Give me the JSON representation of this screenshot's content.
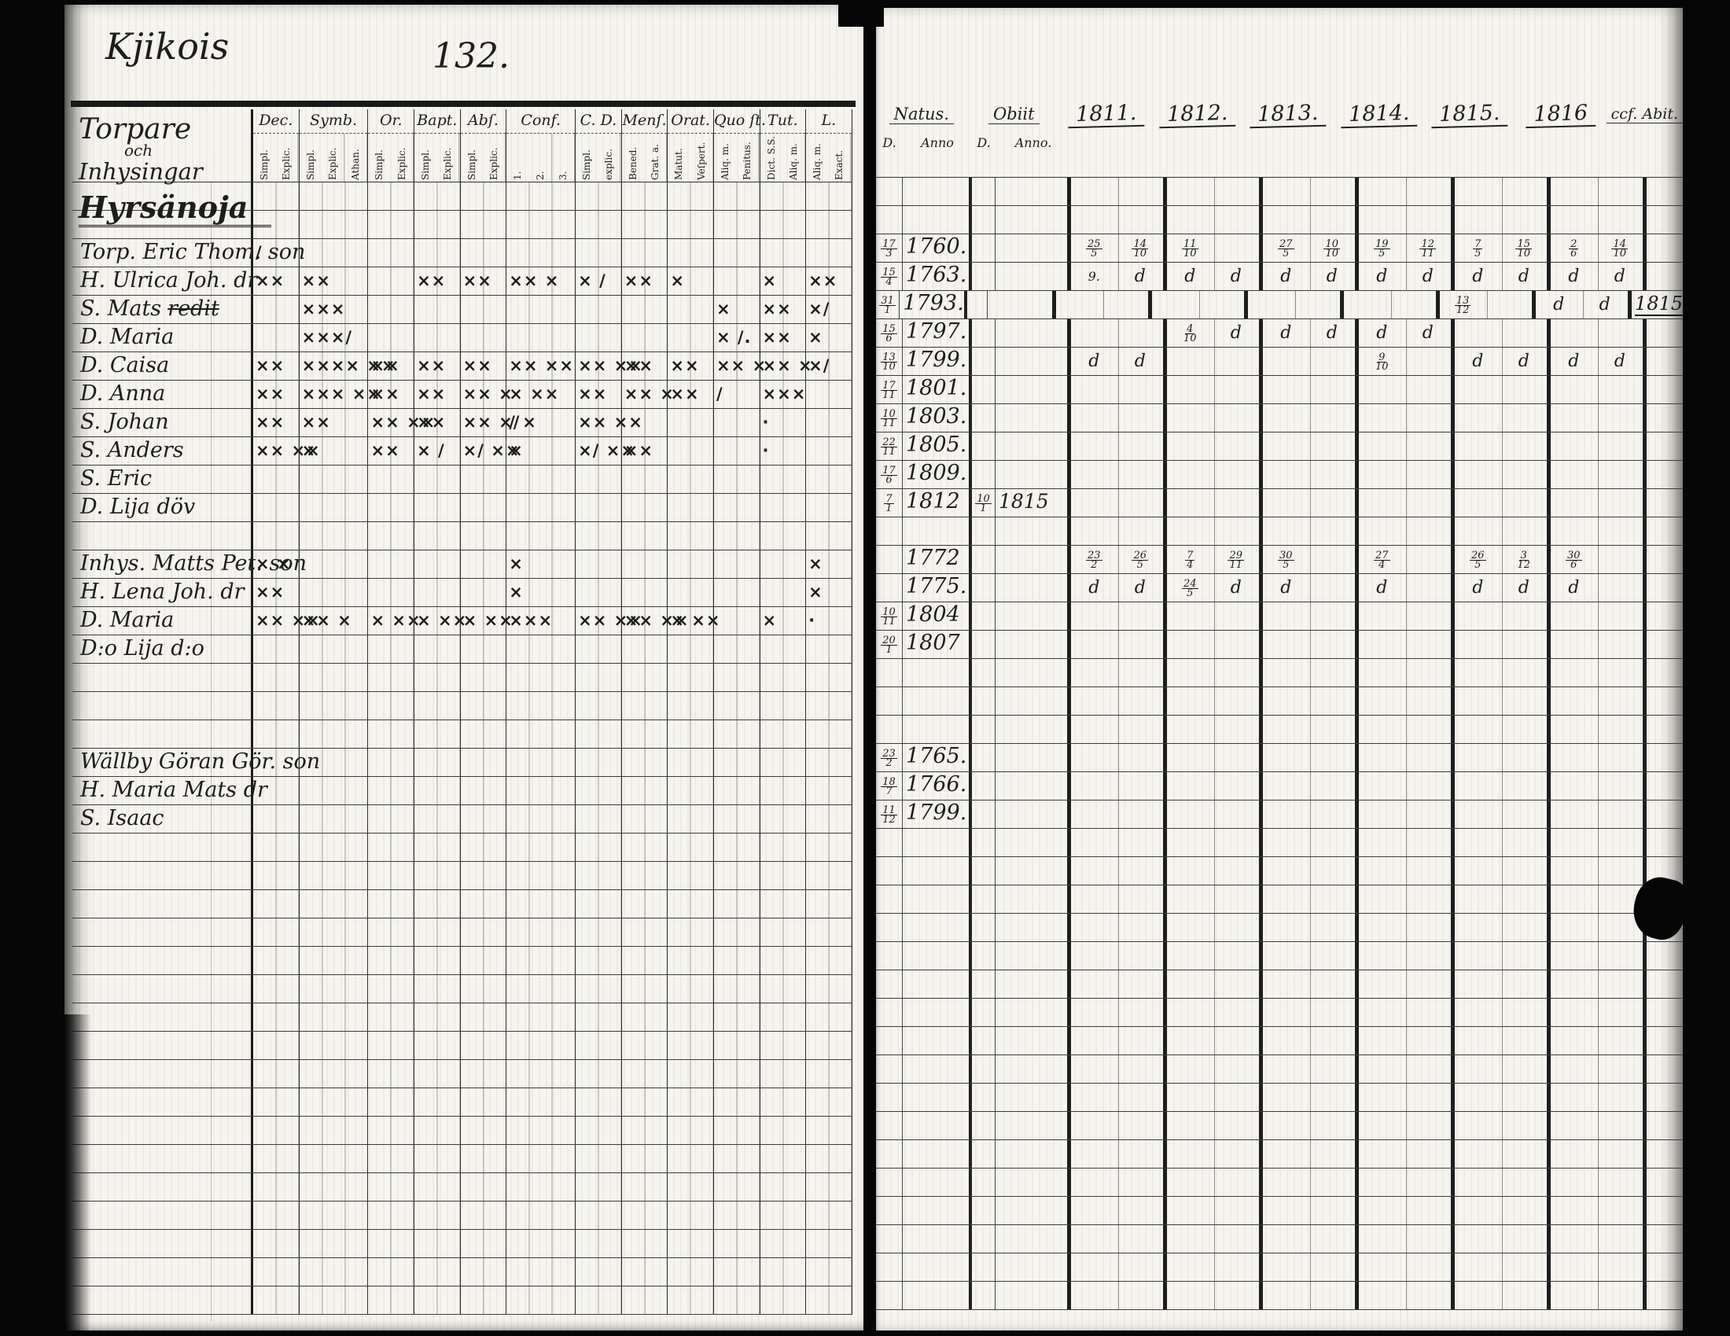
{
  "header": {
    "title": "Kjikois",
    "page_number": "132."
  },
  "left": {
    "group_heading": {
      "line1": "Torpare",
      "line2": "och",
      "line3": "Inhysingar",
      "village": "Hyrsänoja"
    },
    "columns": [
      {
        "label": "Dec.",
        "subs": [
          "Simpl.",
          "Explic."
        ]
      },
      {
        "label": "Symb.",
        "subs": [
          "Simpl.",
          "Explic.",
          "Athan."
        ]
      },
      {
        "label": "Or.",
        "subs": [
          "Simpl.",
          "Explic."
        ]
      },
      {
        "label": "Bapt.",
        "subs": [
          "Simpl.",
          "Explic."
        ]
      },
      {
        "label": "Abſ.",
        "subs": [
          "Simpl.",
          "Explic."
        ]
      },
      {
        "label": "Conf.",
        "subs": [
          "1.",
          "2.",
          "3."
        ]
      },
      {
        "label": "C. D.",
        "subs": [
          "Simpl.",
          "explic."
        ]
      },
      {
        "label": "Menſ.",
        "subs": [
          "Bened.",
          "Grat. a."
        ]
      },
      {
        "label": "Orat.",
        "subs": [
          "Matut.",
          "Veſpert."
        ]
      },
      {
        "label": "Quo ſt.",
        "subs": [
          "Aliq. m.",
          "Penitus."
        ]
      },
      {
        "label": "Tut.",
        "subs": [
          "Dict. S.S.",
          "Aliq. m."
        ]
      },
      {
        "label": "L.",
        "subs": [
          "Aliq. m.",
          "Exact."
        ]
      }
    ]
  },
  "right": {
    "natus": {
      "label": "Natus.",
      "subs": [
        "D.",
        "Anno"
      ]
    },
    "obiit": {
      "label": "Obiit",
      "subs": [
        "D.",
        "Anno."
      ]
    },
    "years": [
      "1811.",
      "1812.",
      "1813.",
      "1814.",
      "1815.",
      "1816"
    ],
    "abit_label": "ccf. Abit."
  },
  "rows": [
    {},
    {},
    {
      "name": "Torp. Eric Thom. son",
      "marks": [
        "/",
        "",
        "",
        "",
        "",
        "",
        "",
        "",
        "",
        "",
        "",
        ""
      ],
      "natus_d": "17/3",
      "natus_anno": "1760.",
      "years": [
        [
          "25/5",
          "14/10"
        ],
        [
          "11/10",
          ""
        ],
        [
          "27/5",
          "10/10"
        ],
        [
          "19/5",
          "12/11"
        ],
        [
          "7/5",
          "15/10"
        ],
        [
          "2/6",
          "14/10"
        ]
      ]
    },
    {
      "name": "H. Ulrica Joh. dr",
      "marks": [
        "××",
        "××",
        "",
        "××",
        "××",
        "×× ×",
        "× /",
        "××",
        "×",
        "",
        "×",
        "××"
      ],
      "natus_d": "15/4",
      "natus_anno": "1763.",
      "years": [
        [
          "9.",
          "d"
        ],
        [
          "d",
          "d"
        ],
        [
          "d",
          "d"
        ],
        [
          "d",
          "d"
        ],
        [
          "d",
          "d"
        ],
        [
          "d",
          "d"
        ]
      ]
    },
    {
      "name": "S. Mats",
      "strike": "redit",
      "marks": [
        "",
        "×××",
        "",
        "",
        "",
        "",
        "",
        "",
        "",
        "×",
        "××",
        "×/"
      ],
      "natus_d": "31/1",
      "natus_anno": "1793.",
      "years": [
        [],
        [],
        [],
        [],
        [
          "13/12",
          ""
        ],
        [
          "d",
          "d"
        ]
      ],
      "abit": "1815"
    },
    {
      "name": "D. Maria",
      "marks": [
        "",
        "×××/",
        "",
        "",
        "",
        "",
        "",
        "",
        "",
        "× /.",
        "××",
        "×"
      ],
      "natus_d": "15/6",
      "natus_anno": "1797.",
      "years": [
        [],
        [
          "4/10",
          "d"
        ],
        [
          "d",
          "d"
        ],
        [
          "d",
          "d"
        ],
        [],
        []
      ]
    },
    {
      "name": "D. Caisa",
      "marks": [
        "××",
        "×××× ××",
        "××",
        "××",
        "××",
        "×× ××",
        "×× ××",
        "××",
        "××",
        "×× ×",
        "×× ×",
        "×/"
      ],
      "natus_d": "13/10",
      "natus_anno": "1799.",
      "years": [
        [
          "d",
          "d"
        ],
        [],
        [],
        [
          "9/10",
          ""
        ],
        [
          "d",
          "d"
        ],
        [
          "d",
          "d"
        ]
      ]
    },
    {
      "name": "D. Anna",
      "marks": [
        "××",
        "××× ××",
        "××",
        "××",
        "×× ×",
        "× ××",
        "××",
        "×× ×",
        "××",
        "/",
        "×××",
        ""
      ],
      "natus_d": "17/11",
      "natus_anno": "1801.",
      "years": [
        [],
        [],
        [],
        [],
        [],
        []
      ]
    },
    {
      "name": "S. Johan",
      "marks": [
        "××",
        "××",
        "×× ××",
        "××",
        "×× ×/",
        "/ ×",
        "×× ××",
        "",
        "",
        "",
        "·",
        ""
      ],
      "natus_d": "10/11",
      "natus_anno": "1803.",
      "years": [
        [],
        [],
        [],
        [],
        [],
        []
      ]
    },
    {
      "name": "S. Anders",
      "marks": [
        "×× ××",
        "×",
        "××",
        "× /",
        "×/ ××",
        "×",
        "×/ ××",
        "××",
        "",
        "",
        "·",
        ""
      ],
      "natus_d": "22/11",
      "natus_anno": "1805.",
      "years": [
        [],
        [],
        [],
        [],
        [],
        []
      ]
    },
    {
      "name": "S. Eric",
      "natus_d": "17/6",
      "natus_anno": "1809.",
      "years": [
        [],
        [],
        [],
        [],
        [],
        []
      ]
    },
    {
      "name": "D. Lija döv",
      "natus_d": "7/1",
      "natus_anno": "1812",
      "obiit_d": "10/1",
      "obiit_anno": "1815",
      "years": [
        [],
        [],
        [],
        [],
        [],
        []
      ]
    },
    {},
    {
      "name": "Inhys. Matts Pet. son",
      "marks": [
        "× ×",
        "",
        "",
        "",
        "",
        "×",
        "",
        "",
        "",
        "",
        "",
        "×"
      ],
      "natus_anno": "1772",
      "years": [
        [
          "23/2",
          "26/5"
        ],
        [
          "7/4",
          "29/11"
        ],
        [
          "30/5",
          ""
        ],
        [
          "27/4",
          ""
        ],
        [
          "26/5",
          "3/12"
        ],
        [
          "30/6",
          ""
        ]
      ]
    },
    {
      "name": "H. Lena Joh. dr",
      "marks": [
        "××",
        "",
        "",
        "",
        "",
        "×",
        "",
        "",
        "",
        "",
        "",
        "×"
      ],
      "natus_anno": "1775.",
      "years": [
        [
          "d",
          "d"
        ],
        [
          "24/5",
          "d"
        ],
        [
          "d",
          ""
        ],
        [
          "d",
          ""
        ],
        [
          "d",
          "d"
        ],
        [
          "d",
          ""
        ]
      ]
    },
    {
      "name": "D. Maria",
      "marks": [
        "×× ××",
        "×× ×",
        "× ××",
        "× ××",
        "× ××",
        "×××",
        "×× ××",
        "×× ××",
        "× ××",
        "",
        "×",
        "·"
      ],
      "natus_d": "10/11",
      "natus_anno": "1804",
      "years": [
        [],
        [],
        [],
        [],
        [],
        []
      ]
    },
    {
      "name": "D:o Lija d:o",
      "natus_d": "20/1",
      "natus_anno": "1807",
      "years": [
        [],
        [],
        [],
        [],
        [],
        []
      ]
    },
    {},
    {},
    {},
    {
      "name": "Wällby Göran Gör. son",
      "natus_d": "23/2",
      "natus_anno": "1765.",
      "years": [
        [],
        [],
        [],
        [],
        [],
        []
      ]
    },
    {
      "name": "H. Maria Mats dr",
      "natus_d": "18/7",
      "natus_anno": "1766.",
      "years": [
        [],
        [],
        [],
        [],
        [],
        []
      ]
    },
    {
      "name": "S. Isaac",
      "natus_d": "11/12",
      "natus_anno": "1799.",
      "years": [
        [],
        [],
        [],
        [],
        [],
        []
      ]
    },
    {},
    {},
    {},
    {},
    {},
    {},
    {},
    {},
    {},
    {},
    {},
    {},
    {},
    {},
    {},
    {},
    {}
  ]
}
